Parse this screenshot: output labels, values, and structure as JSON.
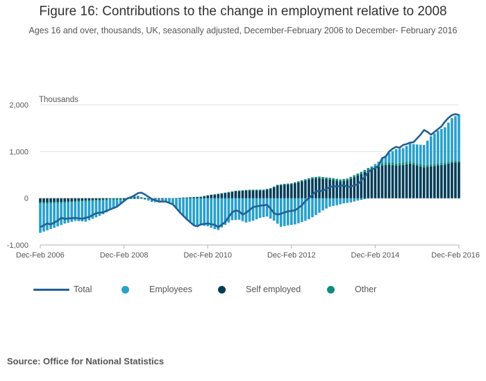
{
  "title": "Figure 16: Contributions to the change in employment relative to 2008",
  "subtitle": "Ages 16 and over, thousands, UK, seasonally adjusted, December-February 2006 to December- February 2016",
  "source": "Source: Office for National Statistics",
  "colors": {
    "total": "#206095",
    "employees": "#27a0cc",
    "self_employed": "#003c57",
    "other": "#118c7b",
    "grid": "#e2e2e3",
    "axis": "#b3b3b3"
  },
  "legend": [
    {
      "key": "total",
      "label": "Total",
      "icon": "line"
    },
    {
      "key": "employees",
      "label": "Employees",
      "icon": "circle"
    },
    {
      "key": "self_employed",
      "label": "Self employed",
      "icon": "circle"
    },
    {
      "key": "other",
      "label": "Other",
      "icon": "circle"
    }
  ],
  "chart_data": {
    "type": "bar",
    "stacked": true,
    "title": "Figure 16: Contributions to the change in employment relative to 2008",
    "ylabel": "Thousands",
    "xlabel": "",
    "ylim": [
      -1000,
      2000
    ],
    "yticks": [
      -1000,
      0,
      1000,
      2000
    ],
    "ytick_labels": [
      "-1,000",
      "0",
      "1,000",
      "2,000"
    ],
    "period_count": 121,
    "xticks": [
      {
        "index": 0,
        "label": "Dec-Feb 2006"
      },
      {
        "index": 24,
        "label": "Dec-Feb 2008"
      },
      {
        "index": 48,
        "label": "Dec-Feb 2010"
      },
      {
        "index": 72,
        "label": "Dec-Feb 2012"
      },
      {
        "index": 96,
        "label": "Dec-Feb 2014"
      },
      {
        "index": 120,
        "label": "Dec-Feb 2016"
      }
    ],
    "anchors": {
      "employees": [
        [
          0,
          -620
        ],
        [
          4,
          -520
        ],
        [
          7,
          -440
        ],
        [
          10,
          -400
        ],
        [
          13,
          -430
        ],
        [
          16,
          -350
        ],
        [
          19,
          -260
        ],
        [
          22,
          -150
        ],
        [
          24,
          -30
        ],
        [
          26,
          20
        ],
        [
          28,
          40
        ],
        [
          30,
          -20
        ],
        [
          32,
          -50
        ],
        [
          34,
          -70
        ],
        [
          36,
          -70
        ],
        [
          38,
          -130
        ],
        [
          40,
          -300
        ],
        [
          42,
          -450
        ],
        [
          44,
          -570
        ],
        [
          46,
          -580
        ],
        [
          48,
          -600
        ],
        [
          50,
          -660
        ],
        [
          51,
          -680
        ],
        [
          53,
          -570
        ],
        [
          55,
          -470
        ],
        [
          57,
          -460
        ],
        [
          59,
          -520
        ],
        [
          61,
          -480
        ],
        [
          63,
          -420
        ],
        [
          65,
          -390
        ],
        [
          67,
          -480
        ],
        [
          69,
          -610
        ],
        [
          71,
          -580
        ],
        [
          73,
          -560
        ],
        [
          75,
          -510
        ],
        [
          77,
          -450
        ],
        [
          79,
          -360
        ],
        [
          81,
          -260
        ],
        [
          83,
          -180
        ],
        [
          85,
          -150
        ],
        [
          87,
          -110
        ],
        [
          89,
          -90
        ],
        [
          91,
          -50
        ],
        [
          93,
          -20
        ],
        [
          95,
          10
        ],
        [
          97,
          60
        ],
        [
          100,
          200
        ],
        [
          102,
          300
        ],
        [
          104,
          310
        ],
        [
          106,
          380
        ],
        [
          108,
          400
        ],
        [
          110,
          430
        ],
        [
          112,
          600
        ],
        [
          114,
          700
        ],
        [
          116,
          760
        ],
        [
          118,
          920
        ],
        [
          120,
          1000
        ]
      ],
      "self_employed": [
        [
          0,
          -90
        ],
        [
          6,
          -80
        ],
        [
          12,
          -50
        ],
        [
          18,
          -30
        ],
        [
          20,
          -10
        ],
        [
          24,
          -20
        ],
        [
          26,
          20
        ],
        [
          30,
          10
        ],
        [
          32,
          -20
        ],
        [
          36,
          -10
        ],
        [
          40,
          10
        ],
        [
          46,
          30
        ],
        [
          48,
          60
        ],
        [
          52,
          100
        ],
        [
          56,
          150
        ],
        [
          60,
          170
        ],
        [
          64,
          170
        ],
        [
          66,
          200
        ],
        [
          68,
          270
        ],
        [
          70,
          290
        ],
        [
          72,
          300
        ],
        [
          74,
          340
        ],
        [
          76,
          380
        ],
        [
          78,
          420
        ],
        [
          80,
          430
        ],
        [
          82,
          410
        ],
        [
          84,
          390
        ],
        [
          86,
          360
        ],
        [
          88,
          380
        ],
        [
          90,
          450
        ],
        [
          92,
          520
        ],
        [
          94,
          600
        ],
        [
          96,
          650
        ],
        [
          98,
          700
        ],
        [
          100,
          720
        ],
        [
          102,
          700
        ],
        [
          104,
          710
        ],
        [
          106,
          740
        ],
        [
          108,
          700
        ],
        [
          110,
          660
        ],
        [
          112,
          680
        ],
        [
          114,
          700
        ],
        [
          116,
          720
        ],
        [
          118,
          760
        ],
        [
          120,
          770
        ]
      ],
      "other": [
        [
          0,
          -30
        ],
        [
          24,
          -20
        ],
        [
          30,
          -10
        ],
        [
          40,
          0
        ],
        [
          56,
          10
        ],
        [
          72,
          20
        ],
        [
          84,
          40
        ],
        [
          100,
          50
        ],
        [
          110,
          50
        ],
        [
          116,
          40
        ],
        [
          120,
          30
        ]
      ],
      "total": [
        [
          0,
          -620
        ],
        [
          1,
          -580
        ],
        [
          2,
          -540
        ],
        [
          3,
          -560
        ],
        [
          4,
          -520
        ],
        [
          5,
          -480
        ],
        [
          6,
          -420
        ],
        [
          7,
          -440
        ],
        [
          10,
          -420
        ],
        [
          12,
          -440
        ],
        [
          14,
          -400
        ],
        [
          16,
          -320
        ],
        [
          18,
          -300
        ],
        [
          20,
          -240
        ],
        [
          22,
          -180
        ],
        [
          24,
          -60
        ],
        [
          25,
          0
        ],
        [
          26,
          20
        ],
        [
          27,
          60
        ],
        [
          28,
          110
        ],
        [
          29,
          120
        ],
        [
          30,
          80
        ],
        [
          32,
          -20
        ],
        [
          34,
          -70
        ],
        [
          36,
          -70
        ],
        [
          38,
          -130
        ],
        [
          40,
          -300
        ],
        [
          42,
          -450
        ],
        [
          44,
          -580
        ],
        [
          45,
          -600
        ],
        [
          46,
          -560
        ],
        [
          48,
          -540
        ],
        [
          50,
          -570
        ],
        [
          51,
          -620
        ],
        [
          53,
          -510
        ],
        [
          54,
          -400
        ],
        [
          55,
          -300
        ],
        [
          56,
          -260
        ],
        [
          57,
          -280
        ],
        [
          58,
          -350
        ],
        [
          59,
          -310
        ],
        [
          61,
          -190
        ],
        [
          63,
          -160
        ],
        [
          65,
          -140
        ],
        [
          66,
          -220
        ],
        [
          67,
          -320
        ],
        [
          68,
          -350
        ],
        [
          69,
          -330
        ],
        [
          71,
          -280
        ],
        [
          73,
          -260
        ],
        [
          75,
          -150
        ],
        [
          76,
          -60
        ],
        [
          77,
          0
        ],
        [
          79,
          150
        ],
        [
          81,
          160
        ],
        [
          83,
          240
        ],
        [
          84,
          260
        ],
        [
          85,
          250
        ],
        [
          87,
          280
        ],
        [
          88,
          240
        ],
        [
          89,
          250
        ],
        [
          91,
          300
        ],
        [
          92,
          380
        ],
        [
          93,
          460
        ],
        [
          94,
          560
        ],
        [
          95,
          620
        ],
        [
          96,
          640
        ],
        [
          97,
          700
        ],
        [
          98,
          860
        ],
        [
          99,
          890
        ],
        [
          100,
          1000
        ],
        [
          101,
          1060
        ],
        [
          102,
          1100
        ],
        [
          103,
          1080
        ],
        [
          104,
          1140
        ],
        [
          105,
          1160
        ],
        [
          106,
          1190
        ],
        [
          107,
          1200
        ],
        [
          108,
          1280
        ],
        [
          109,
          1360
        ],
        [
          110,
          1460
        ],
        [
          111,
          1420
        ],
        [
          112,
          1360
        ],
        [
          113,
          1420
        ],
        [
          114,
          1480
        ],
        [
          115,
          1540
        ],
        [
          116,
          1640
        ],
        [
          117,
          1720
        ],
        [
          118,
          1780
        ],
        [
          119,
          1800
        ],
        [
          120,
          1780
        ]
      ]
    }
  }
}
